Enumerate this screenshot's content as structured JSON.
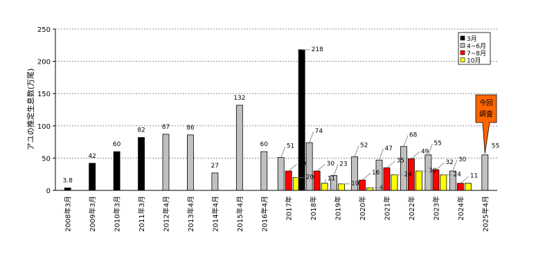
{
  "chart_data": {
    "type": "bar",
    "ylabel": "アユの推定生息数(万尾)",
    "ylim": [
      0,
      250
    ],
    "yticks": [
      0,
      50,
      100,
      150,
      200,
      250
    ],
    "grid": true,
    "legend_position": "top-right",
    "categories": [
      "2008年3月",
      "2009年3月",
      "2010年3月",
      "2011年3月",
      "2012年4月",
      "2013年4月",
      "2014年4月",
      "2015年4月",
      "2016年4月",
      "2017年",
      "2018年",
      "2019年",
      "2020年",
      "2021年",
      "2022年",
      "2023年",
      "2024年",
      "2025年4月"
    ],
    "series": [
      {
        "name": "3月",
        "color": "#000000",
        "values": [
          3.8,
          42,
          60,
          82,
          null,
          null,
          null,
          null,
          null,
          null,
          218,
          null,
          null,
          null,
          null,
          null,
          null,
          null
        ],
        "labels": [
          "3.8",
          "42",
          "60",
          "82",
          "",
          "",
          "",
          "",
          "",
          "",
          "218",
          "",
          "",
          "",
          "",
          "",
          "",
          ""
        ]
      },
      {
        "name": "4~6月",
        "color": "#c0c0c0",
        "values": [
          null,
          null,
          null,
          null,
          87,
          86,
          27,
          132,
          60,
          51,
          74,
          23,
          52,
          47,
          68,
          55,
          30,
          55
        ],
        "labels": [
          "",
          "",
          "",
          "",
          "87",
          "86",
          "27",
          "132",
          "60",
          "51",
          "74",
          "23",
          "52",
          "47",
          "68",
          "55",
          "30",
          "55"
        ]
      },
      {
        "name": "7~8月",
        "color": "#ff0000",
        "values": [
          null,
          null,
          null,
          null,
          null,
          null,
          null,
          null,
          null,
          30,
          30,
          null,
          16,
          35,
          49,
          32,
          11,
          null
        ],
        "labels": [
          "",
          "",
          "",
          "",
          "",
          "",
          "",
          "",
          "",
          "30",
          "30",
          "",
          "16",
          "35",
          "49",
          "32",
          "11",
          ""
        ]
      },
      {
        "name": "10月",
        "color": "#ffff00",
        "values": [
          null,
          null,
          null,
          null,
          null,
          null,
          null,
          null,
          null,
          20,
          11,
          10,
          4,
          24,
          30,
          24,
          11,
          null
        ],
        "labels": [
          "",
          "",
          "",
          "",
          "",
          "",
          "",
          "",
          "",
          "20",
          "11",
          "10",
          "4",
          "24",
          "30",
          "24",
          "",
          ""
        ]
      }
    ],
    "callout": {
      "line1": "今回",
      "line2": "調査",
      "color": "#ff6600"
    }
  }
}
